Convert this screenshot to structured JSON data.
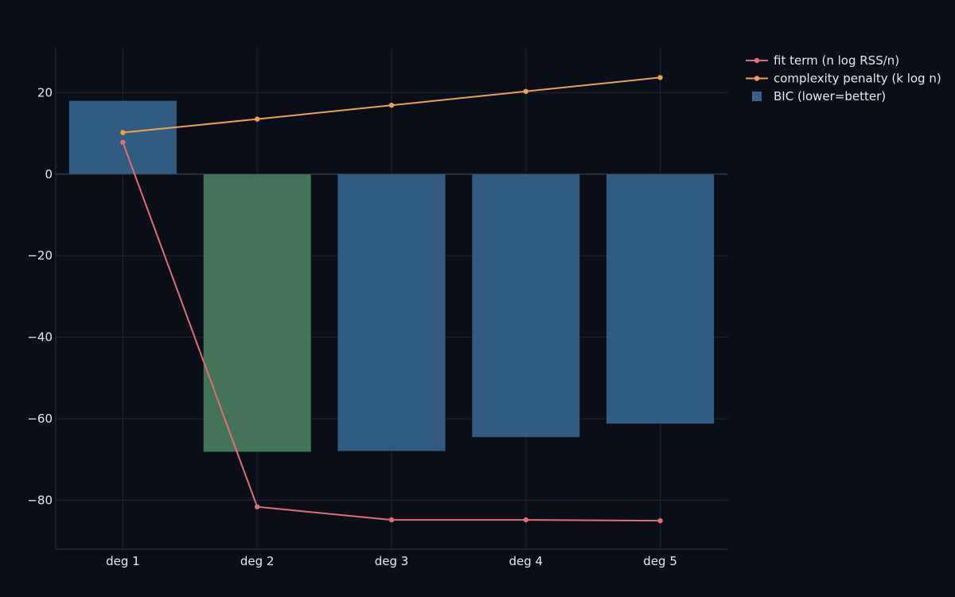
{
  "chart_data": {
    "type": "bar",
    "categories": [
      "deg 1",
      "deg 2",
      "deg 3",
      "deg 4",
      "deg 5"
    ],
    "ylim": [
      -92,
      31
    ],
    "yticks": [
      20,
      0,
      -20,
      -40,
      -60,
      -80
    ],
    "ytick_labels": [
      "20",
      "0",
      "−20",
      "−40",
      "−60",
      "−80"
    ],
    "grid": true,
    "legend_position": "top-right",
    "series": [
      {
        "name": "fit term (n log RSS/n)",
        "type": "line",
        "color": "#e06c75",
        "values": [
          7.8,
          -81.6,
          -84.8,
          -84.8,
          -85.0
        ]
      },
      {
        "name": "complexity penalty (k log n)",
        "type": "line",
        "color": "#f0a04b",
        "values": [
          10.2,
          13.5,
          16.9,
          20.3,
          23.7
        ]
      },
      {
        "name": "BIC (lower=better)",
        "type": "bar",
        "color": "#36628c",
        "highlight_color": "#467d60",
        "highlight_index": 1,
        "values": [
          18.0,
          -68.1,
          -67.9,
          -64.5,
          -61.2
        ]
      }
    ]
  }
}
